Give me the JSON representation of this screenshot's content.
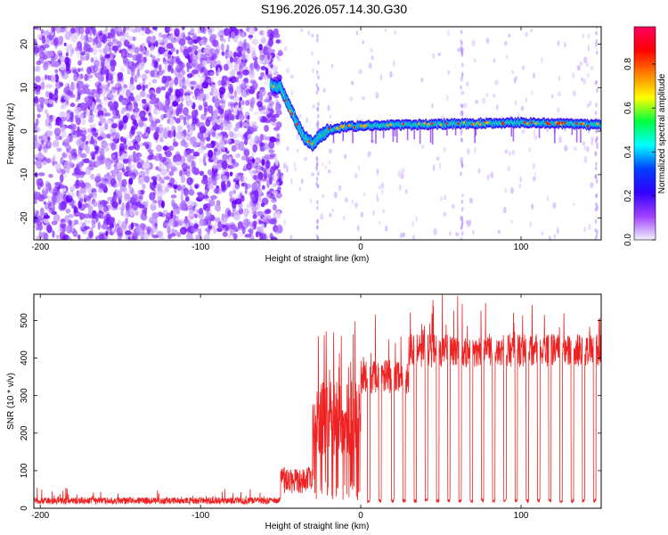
{
  "title": "S196.2026.057.14.30.G30",
  "chart_data": [
    {
      "type": "heatmap",
      "xlabel": "Height of straight line (km)",
      "ylabel": "Frequency (Hz)",
      "xlim": [
        -204,
        150
      ],
      "ylim": [
        -25,
        24
      ],
      "xticks": [
        -200,
        -100,
        0,
        100
      ],
      "yticks": [
        -20,
        -10,
        0,
        10,
        20
      ],
      "colorbar": {
        "label": "Normalized spectral amplitude",
        "range": [
          0,
          0.97
        ],
        "ticks": [
          0.0,
          0.2,
          0.4,
          0.6,
          0.8
        ],
        "colors": [
          "#f2f2ff",
          "#a040ff",
          "#3000ff",
          "#0040ff",
          "#00ffff",
          "#00ff40",
          "#ffff00",
          "#ff8000",
          "#ff0000",
          "#ff0060"
        ]
      },
      "ridge": [
        {
          "x": -56,
          "y": 10.5
        },
        {
          "x": -50,
          "y": 10
        },
        {
          "x": -45,
          "y": 6
        },
        {
          "x": -40,
          "y": 2
        },
        {
          "x": -35,
          "y": -1.5
        },
        {
          "x": -30,
          "y": -3
        },
        {
          "x": -25,
          "y": -1
        },
        {
          "x": -20,
          "y": 0.2
        },
        {
          "x": -10,
          "y": 1
        },
        {
          "x": 0,
          "y": 1.2
        },
        {
          "x": 50,
          "y": 1.6
        },
        {
          "x": 100,
          "y": 2
        },
        {
          "x": 150,
          "y": 1.4
        }
      ]
    },
    {
      "type": "line",
      "xlabel": "Height of straight line (km)",
      "ylabel": "SNR (10 * v/v)",
      "xlim": [
        -204,
        150
      ],
      "ylim": [
        0,
        570
      ],
      "xticks": [
        -200,
        -100,
        0,
        100
      ],
      "yticks": [
        0,
        100,
        200,
        300,
        400,
        500
      ],
      "series": [
        {
          "name": "SNR",
          "color": "#ee2222",
          "segments": [
            {
              "x_start": -204,
              "x_end": -50,
              "baseline": 20,
              "peak_max": 50
            },
            {
              "x_start": -50,
              "x_end": -30,
              "baseline": 40,
              "peak_max": 110
            },
            {
              "x_start": -30,
              "x_end": 0,
              "baseline": 200,
              "peak_max": 510
            },
            {
              "x_start": 0,
              "x_end": 30,
              "baseline": 350,
              "peak_max": 490
            },
            {
              "x_start": 30,
              "x_end": 150,
              "baseline": 420,
              "peak_max": 570
            }
          ],
          "dips_at": [
            5,
            12,
            20,
            27,
            34,
            41,
            48,
            55,
            62,
            69,
            76,
            83,
            90,
            97,
            104,
            111,
            118,
            125,
            132,
            139,
            146
          ],
          "dip_value": 15
        }
      ]
    }
  ]
}
